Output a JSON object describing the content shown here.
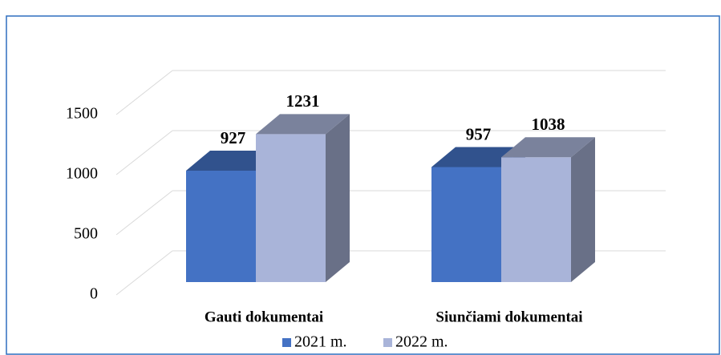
{
  "chart_data": {
    "type": "bar3d",
    "categories": [
      "Gauti dokumentai",
      "Siunčiami dokumentai"
    ],
    "series": [
      {
        "name": "2021 m.",
        "color": "#4472c4",
        "values": [
          927,
          957
        ]
      },
      {
        "name": "2022 m.",
        "color": "#a9b4d9",
        "values": [
          1231,
          1038
        ]
      }
    ],
    "ylim": [
      0,
      1500
    ],
    "yticks": [
      0,
      500,
      1000,
      1500
    ],
    "grid": true,
    "legend": "bottom"
  }
}
